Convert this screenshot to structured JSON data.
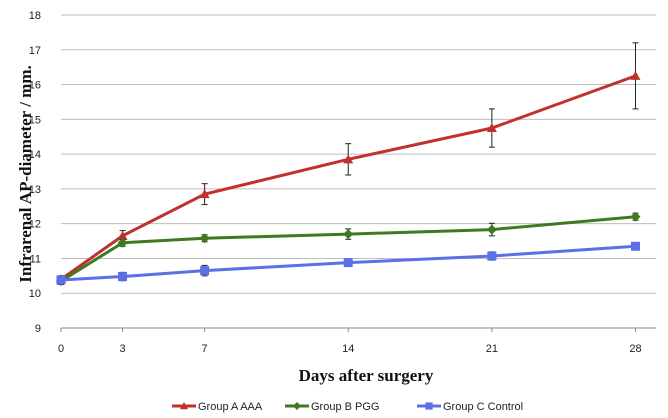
{
  "chart_data": {
    "type": "line",
    "title": "",
    "xlabel": "Days after surgery",
    "ylabel": "Infrarenal AP-diameter / mm.",
    "x": [
      0,
      3,
      7,
      14,
      21,
      28
    ],
    "x_ticks": [
      "0",
      "3",
      "7",
      "14",
      "21",
      "28"
    ],
    "y_ticks": [
      "9",
      "10",
      "11",
      "12",
      "13",
      "14",
      "15",
      "16",
      "17",
      "18"
    ],
    "ylim": [
      9,
      18
    ],
    "xlim": [
      0,
      29
    ],
    "grid": "horizontal",
    "legend_position": "bottom",
    "series": [
      {
        "name": "Group A AAA",
        "color": "#c0302d",
        "marker": "triangle",
        "values": [
          10.4,
          11.65,
          12.85,
          13.85,
          14.75,
          16.25
        ],
        "errors": [
          0.1,
          0.15,
          0.3,
          0.45,
          0.55,
          0.95
        ]
      },
      {
        "name": "Group B PGG",
        "color": "#3f7a22",
        "marker": "diamond",
        "values": [
          10.35,
          11.45,
          11.58,
          11.7,
          11.83,
          12.2
        ],
        "errors": [
          0.1,
          0.1,
          0.1,
          0.15,
          0.18,
          0.1
        ]
      },
      {
        "name": "Group C Control",
        "color": "#5b6fe6",
        "marker": "square",
        "values": [
          10.38,
          10.48,
          10.65,
          10.88,
          11.07,
          11.35
        ],
        "errors": [
          0.12,
          0.12,
          0.15,
          0.08,
          0.12,
          0.08
        ]
      }
    ]
  }
}
